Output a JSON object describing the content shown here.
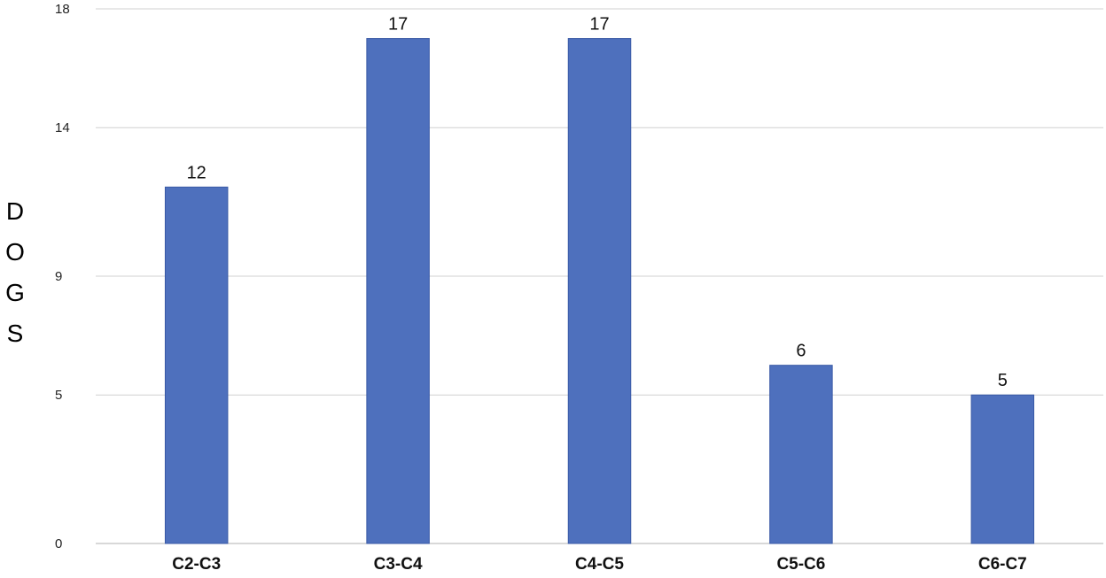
{
  "chart_data": {
    "type": "bar",
    "title": "",
    "xlabel": "",
    "ylabel": "DOGS",
    "categories": [
      "C2-C3",
      "C3-C4",
      "C4-C5",
      "C5-C6",
      "C6-C7"
    ],
    "series": [
      {
        "values": [
          12,
          17,
          17,
          6,
          5
        ]
      }
    ],
    "data_labels": [
      "12",
      "17",
      "17",
      "6",
      "5"
    ],
    "y_ticks": [
      0,
      5,
      9,
      14,
      18
    ],
    "ylim": [
      0,
      18
    ],
    "grid": true,
    "legend": "none",
    "colors": {
      "bar_fill": "#4e70bd",
      "bar_stroke": "#3a5aa6",
      "grid": "#d0d0d0",
      "axis": "#b0b0b0"
    }
  }
}
